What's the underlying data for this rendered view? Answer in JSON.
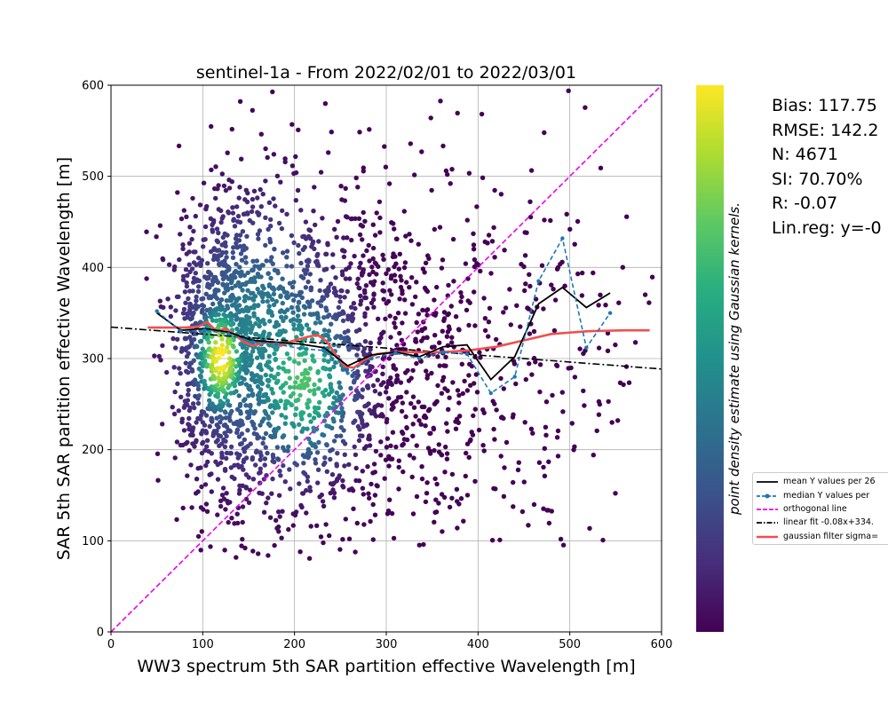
{
  "chart_data": {
    "type": "scatter",
    "title": "sentinel-1a - From 2022/02/01 to 2022/03/01",
    "xlabel": "WW3 spectrum 5th SAR partition effective Wavelength [m]",
    "ylabel": "SAR 5th SAR partition effective Wavelength [m]",
    "xlim": [
      0,
      600
    ],
    "ylim": [
      0,
      600
    ],
    "xticks": [
      "0",
      "100",
      "200",
      "300",
      "400",
      "500",
      "600"
    ],
    "yticks": [
      "0",
      "100",
      "200",
      "300",
      "400",
      "500",
      "600"
    ],
    "grid": true,
    "colorbar_label": "point density estimate using Gaussian kernels.",
    "colormap": "viridis",
    "colors": {
      "mean": "#000000",
      "median": "#1f77b4",
      "orthogonal": "#ee00ee",
      "linear_fit": "#000000",
      "gaussian": "#ee5050"
    },
    "stats": [
      "Bias: 117.75",
      "RMSE: 142.2",
      "N: 4671",
      "SI: 70.70%",
      "R: -0.07",
      "Lin.reg: y=-0"
    ],
    "legend": {
      "location": "right-middle",
      "entries": [
        "mean Y values per 26",
        "median Y values per",
        "orthogonal line",
        "linear fit -0.08x+334.",
        "gaussian filter sigma="
      ]
    },
    "series": [
      {
        "name": "mean Y values per 26",
        "x": [
          50,
          76,
          102,
          128,
          154,
          180,
          206,
          232,
          258,
          284,
          310,
          336,
          362,
          388,
          414,
          440,
          466,
          492,
          518,
          544
        ],
        "y": [
          350,
          331,
          333,
          329,
          320,
          318,
          316,
          312,
          292,
          304,
          307,
          302,
          313,
          315,
          277,
          302,
          360,
          378,
          356,
          372
        ]
      },
      {
        "name": "median Y values per",
        "x": [
          50,
          76,
          102,
          128,
          154,
          180,
          206,
          232,
          258,
          284,
          310,
          336,
          362,
          388,
          414,
          440,
          466,
          492,
          518,
          544
        ],
        "y": [
          352,
          330,
          331,
          327,
          318,
          316,
          311,
          309,
          284,
          300,
          306,
          300,
          307,
          305,
          262,
          280,
          385,
          432,
          312,
          350
        ]
      },
      {
        "name": "orthogonal line",
        "x": [
          0,
          600
        ],
        "y": [
          0,
          600
        ]
      },
      {
        "name": "linear fit -0.08x+334.",
        "x": [
          0,
          600
        ],
        "y": [
          334.5,
          288.5
        ]
      },
      {
        "name": "gaussian filter sigma=",
        "x": [
          40,
          60,
          80,
          95,
          105,
          115,
          125,
          135,
          145,
          155,
          170,
          185,
          200,
          215,
          225,
          235,
          245,
          255,
          265,
          275,
          290,
          310,
          330,
          360,
          390,
          420,
          450,
          480,
          520,
          560,
          587
        ],
        "y": [
          334,
          334,
          334,
          335,
          340,
          330,
          333,
          326,
          318,
          314,
          318,
          314,
          320,
          324,
          326,
          319,
          304,
          291,
          290,
          298,
          305,
          307,
          307,
          307,
          309,
          313,
          320,
          327,
          330,
          331,
          331
        ]
      }
    ]
  }
}
